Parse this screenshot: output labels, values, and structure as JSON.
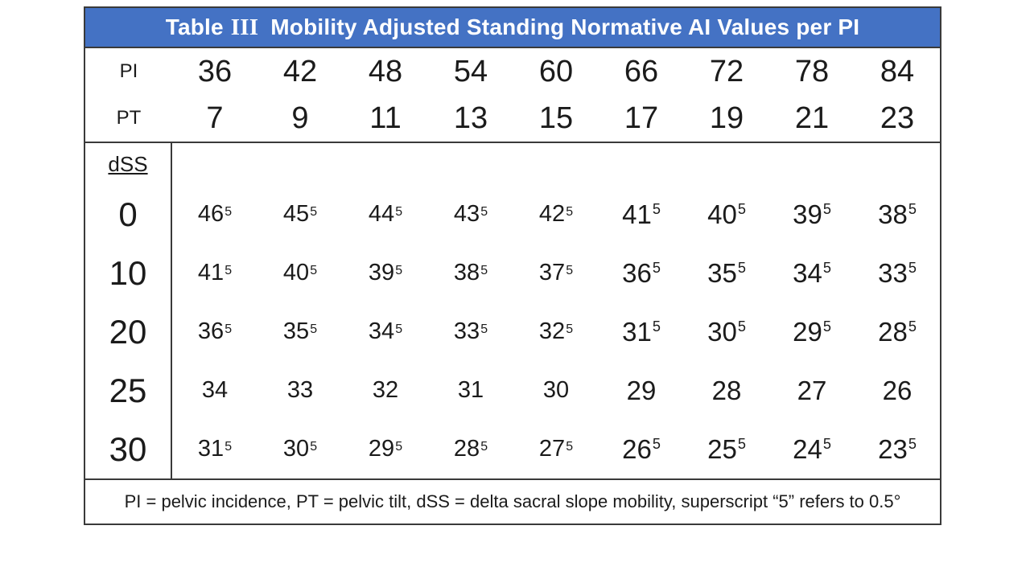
{
  "title": {
    "word": "Table",
    "numeral": "III",
    "text": "Mobility Adjusted Standing Normative AI Values per PI"
  },
  "colors": {
    "header_bg": "#4472C4",
    "header_text": "#FFFFFF",
    "border": "#3A3A3A",
    "text": "#1B1B1B"
  },
  "header_rows": [
    {
      "label": "PI",
      "values": [
        "36",
        "42",
        "48",
        "54",
        "60",
        "66",
        "72",
        "78",
        "84"
      ]
    },
    {
      "label": "PT",
      "values": [
        "7",
        "9",
        "11",
        "13",
        "15",
        "17",
        "19",
        "21",
        "23"
      ]
    }
  ],
  "dss_label": "dSS",
  "dss_rows": [
    {
      "label": "0",
      "cells": [
        {
          "v": "46",
          "sup": "5"
        },
        {
          "v": "45",
          "sup": "5"
        },
        {
          "v": "44",
          "sup": "5"
        },
        {
          "v": "43",
          "sup": "5"
        },
        {
          "v": "42",
          "sup": "5"
        },
        {
          "v": "41",
          "sup": "5"
        },
        {
          "v": "40",
          "sup": "5"
        },
        {
          "v": "39",
          "sup": "5"
        },
        {
          "v": "38",
          "sup": "5"
        }
      ]
    },
    {
      "label": "10",
      "cells": [
        {
          "v": "41",
          "sup": "5"
        },
        {
          "v": "40",
          "sup": "5"
        },
        {
          "v": "39",
          "sup": "5"
        },
        {
          "v": "38",
          "sup": "5"
        },
        {
          "v": "37",
          "sup": "5"
        },
        {
          "v": "36",
          "sup": "5"
        },
        {
          "v": "35",
          "sup": "5"
        },
        {
          "v": "34",
          "sup": "5"
        },
        {
          "v": "33",
          "sup": "5"
        }
      ]
    },
    {
      "label": "20",
      "cells": [
        {
          "v": "36",
          "sup": "5"
        },
        {
          "v": "35",
          "sup": "5"
        },
        {
          "v": "34",
          "sup": "5"
        },
        {
          "v": "33",
          "sup": "5"
        },
        {
          "v": "32",
          "sup": "5"
        },
        {
          "v": "31",
          "sup": "5"
        },
        {
          "v": "30",
          "sup": "5"
        },
        {
          "v": "29",
          "sup": "5"
        },
        {
          "v": "28",
          "sup": "5"
        }
      ]
    },
    {
      "label": "25",
      "cells": [
        {
          "v": "34",
          "sup": ""
        },
        {
          "v": "33",
          "sup": ""
        },
        {
          "v": "32",
          "sup": ""
        },
        {
          "v": "31",
          "sup": ""
        },
        {
          "v": "30",
          "sup": ""
        },
        {
          "v": "29",
          "sup": ""
        },
        {
          "v": "28",
          "sup": ""
        },
        {
          "v": "27",
          "sup": ""
        },
        {
          "v": "26",
          "sup": ""
        }
      ]
    },
    {
      "label": "30",
      "cells": [
        {
          "v": "31",
          "sup": "5"
        },
        {
          "v": "30",
          "sup": "5"
        },
        {
          "v": "29",
          "sup": "5"
        },
        {
          "v": "28",
          "sup": "5"
        },
        {
          "v": "27",
          "sup": "5"
        },
        {
          "v": "26",
          "sup": "5"
        },
        {
          "v": "25",
          "sup": "5"
        },
        {
          "v": "24",
          "sup": "5"
        },
        {
          "v": "23",
          "sup": "5"
        }
      ]
    }
  ],
  "footnote": "PI = pelvic incidence, PT = pelvic tilt, dSS = delta sacral slope mobility, superscript “5” refers to 0.5°",
  "chart_data": {
    "type": "table",
    "title": "Table III Mobility Adjusted Standing Normative AI Values per PI",
    "column_variable_pi": [
      36,
      42,
      48,
      54,
      60,
      66,
      72,
      78,
      84
    ],
    "column_variable_pt": [
      7,
      9,
      11,
      13,
      15,
      17,
      19,
      21,
      23
    ],
    "row_variable": "dSS",
    "rows": [
      {
        "dSS": 0,
        "ai_values": [
          46.5,
          45.5,
          44.5,
          43.5,
          42.5,
          41.5,
          40.5,
          39.5,
          38.5
        ]
      },
      {
        "dSS": 10,
        "ai_values": [
          41.5,
          40.5,
          39.5,
          38.5,
          37.5,
          36.5,
          35.5,
          34.5,
          33.5
        ]
      },
      {
        "dSS": 20,
        "ai_values": [
          36.5,
          35.5,
          34.5,
          33.5,
          32.5,
          31.5,
          30.5,
          29.5,
          28.5
        ]
      },
      {
        "dSS": 25,
        "ai_values": [
          34,
          33,
          32,
          31,
          30,
          29,
          28,
          27,
          26
        ]
      },
      {
        "dSS": 30,
        "ai_values": [
          31.5,
          30.5,
          29.5,
          28.5,
          27.5,
          26.5,
          25.5,
          24.5,
          23.5
        ]
      }
    ],
    "footnote": "PI = pelvic incidence, PT = pelvic tilt, dSS = delta sacral slope mobility, superscript “5” refers to 0.5°"
  }
}
